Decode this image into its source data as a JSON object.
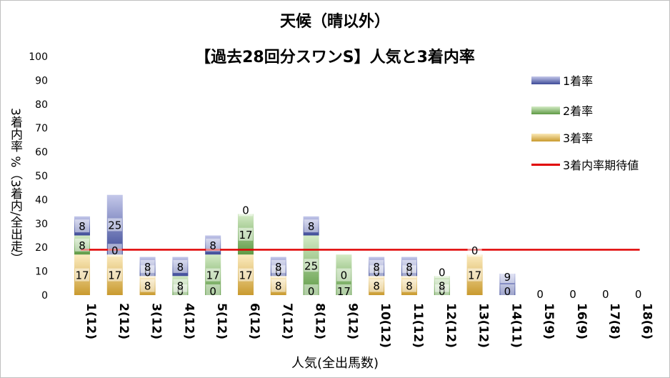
{
  "chart_data": {
    "type": "bar",
    "stacked": true,
    "title": "天候（晴以外）",
    "subtitle": "【過去28回分スワンS】人気と3着内率",
    "xlabel": "人気(全出馬数)",
    "ylabel": "3着内率 %（3着内/全出走）",
    "ylim": [
      0,
      100
    ],
    "yticks": [
      0,
      10,
      20,
      30,
      40,
      50,
      60,
      70,
      80,
      90,
      100
    ],
    "grid": false,
    "legend_position": "right",
    "categories": [
      "1(12)",
      "2(12)",
      "3(12)",
      "4(12)",
      "5(12)",
      "6(12)",
      "7(12)",
      "8(12)",
      "9(12)",
      "10(12)",
      "11(12)",
      "12(12)",
      "13(12)",
      "14(11)",
      "15(9)",
      "16(9)",
      "17(8)",
      "18(6)"
    ],
    "series": [
      {
        "name": "3着率",
        "color": "#c99a2e",
        "values": [
          17,
          17,
          8,
          0,
          0,
          17,
          8,
          0,
          0,
          8,
          8,
          0,
          17,
          0,
          0,
          0,
          0,
          0
        ]
      },
      {
        "name": "2着率",
        "color": "#6aa84f",
        "values": [
          8,
          0,
          0,
          8,
          17,
          17,
          0,
          25,
          17,
          0,
          0,
          8,
          0,
          0,
          0,
          0,
          0,
          0
        ]
      },
      {
        "name": "1着率",
        "color": "#4a5aa8",
        "values": [
          8,
          25,
          8,
          8,
          8,
          0,
          8,
          8,
          0,
          8,
          8,
          0,
          0,
          9,
          0,
          0,
          0,
          0
        ]
      }
    ],
    "bar_labels": [
      [
        "17",
        "8",
        "8"
      ],
      [
        "17",
        "0",
        "25"
      ],
      [
        "8",
        "0",
        "8"
      ],
      [
        "0",
        "8",
        "8"
      ],
      [
        "0",
        "17",
        "8"
      ],
      [
        "17",
        "17",
        "0"
      ],
      [
        "8",
        "0",
        "8"
      ],
      [
        "0",
        "25",
        "8"
      ],
      [
        "17",
        "0"
      ],
      [
        "8",
        "0",
        "8"
      ],
      [
        "8",
        "0",
        "8"
      ],
      [
        "0",
        "8",
        "0"
      ],
      [
        "17",
        "0"
      ],
      [
        "0",
        "9"
      ],
      [
        "0"
      ],
      [
        "0"
      ],
      [
        "0"
      ],
      [
        "0"
      ]
    ],
    "reference_line": {
      "name": "3着内率期待値",
      "value": 19,
      "color": "#e00000"
    }
  }
}
